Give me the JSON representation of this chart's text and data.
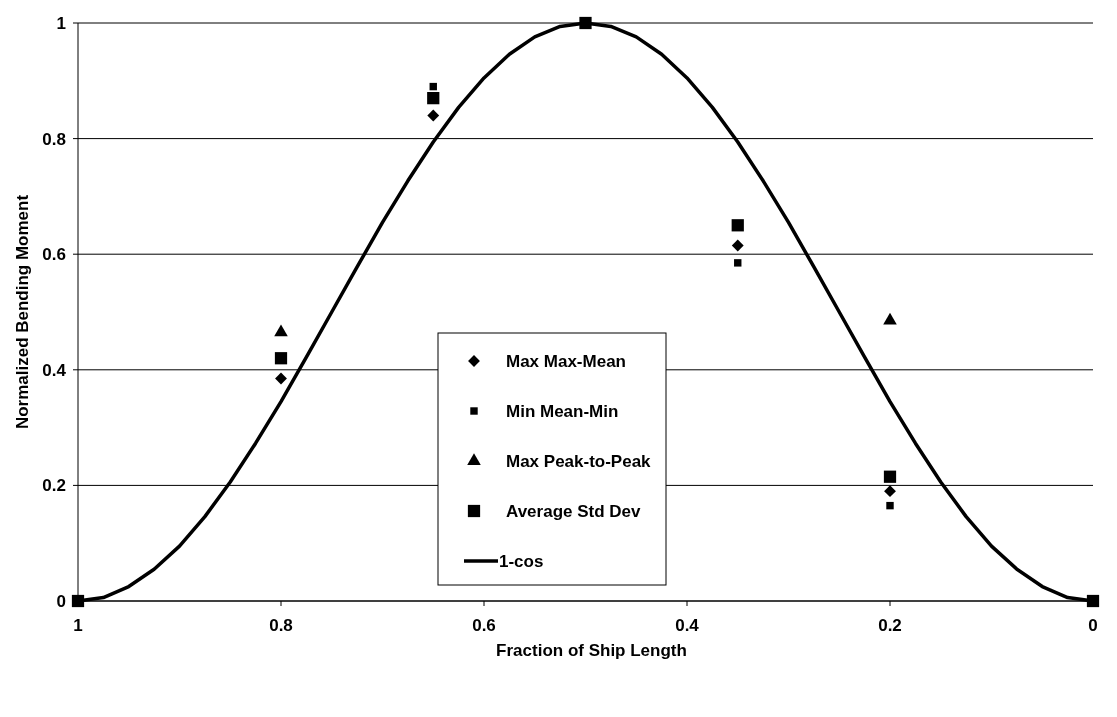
{
  "chart_data": {
    "type": "scatter",
    "xlabel": "Fraction of Ship Length",
    "ylabel": "Normalized Bending Moment",
    "xlim": [
      1,
      0
    ],
    "xticks": [
      1,
      0.8,
      0.6,
      0.4,
      0.2,
      0
    ],
    "ylim": [
      0,
      1
    ],
    "yticks": [
      0,
      0.2,
      0.4,
      0.6,
      0.8,
      1
    ],
    "grid": "y",
    "legend": "bottom",
    "series": [
      {
        "name": "Max Max-Mean",
        "color": "#000000",
        "marker": "diamond",
        "x": [
          0.8,
          0.65,
          0.35,
          0.2
        ],
        "values": [
          0.385,
          0.84,
          0.615,
          0.19
        ]
      },
      {
        "name": "Min Mean-Min",
        "color": "#000000",
        "marker": "square",
        "x": [
          0.65,
          0.35,
          0.2
        ],
        "values": [
          0.89,
          0.585,
          0.165
        ]
      },
      {
        "name": "Max Peak-to-Peak",
        "color": "#000000",
        "marker": "triangle",
        "x": [
          0.8,
          0.2
        ],
        "values": [
          0.465,
          0.485
        ]
      },
      {
        "name": "Average Std Dev",
        "color": "#000000",
        "marker": "square",
        "x": [
          1,
          0.8,
          0.65,
          0.5,
          0.35,
          0.2,
          0
        ],
        "values": [
          0,
          0.42,
          0.87,
          1,
          0.65,
          0.215,
          0
        ]
      },
      {
        "name": "1-cos",
        "type": "line",
        "color": "#000000",
        "marker": "none",
        "x": [
          0,
          0.025,
          0.05,
          0.075,
          0.1,
          0.125,
          0.15,
          0.175,
          0.2,
          0.225,
          0.25,
          0.275,
          0.3,
          0.325,
          0.35,
          0.375,
          0.4,
          0.425,
          0.45,
          0.475,
          0.5,
          0.525,
          0.55,
          0.575,
          0.6,
          0.625,
          0.65,
          0.675,
          0.7,
          0.725,
          0.75,
          0.775,
          0.8,
          0.825,
          0.85,
          0.875,
          0.9,
          0.925,
          0.95,
          0.975,
          1
        ],
        "values": [
          0,
          0.006,
          0.025,
          0.055,
          0.095,
          0.146,
          0.206,
          0.273,
          0.345,
          0.422,
          0.5,
          0.578,
          0.655,
          0.727,
          0.794,
          0.854,
          0.905,
          0.946,
          0.976,
          0.994,
          1,
          0.994,
          0.976,
          0.946,
          0.905,
          0.854,
          0.794,
          0.727,
          0.655,
          0.578,
          0.5,
          0.422,
          0.345,
          0.273,
          0.206,
          0.146,
          0.095,
          0.055,
          0.025,
          0.006,
          0
        ]
      }
    ]
  }
}
